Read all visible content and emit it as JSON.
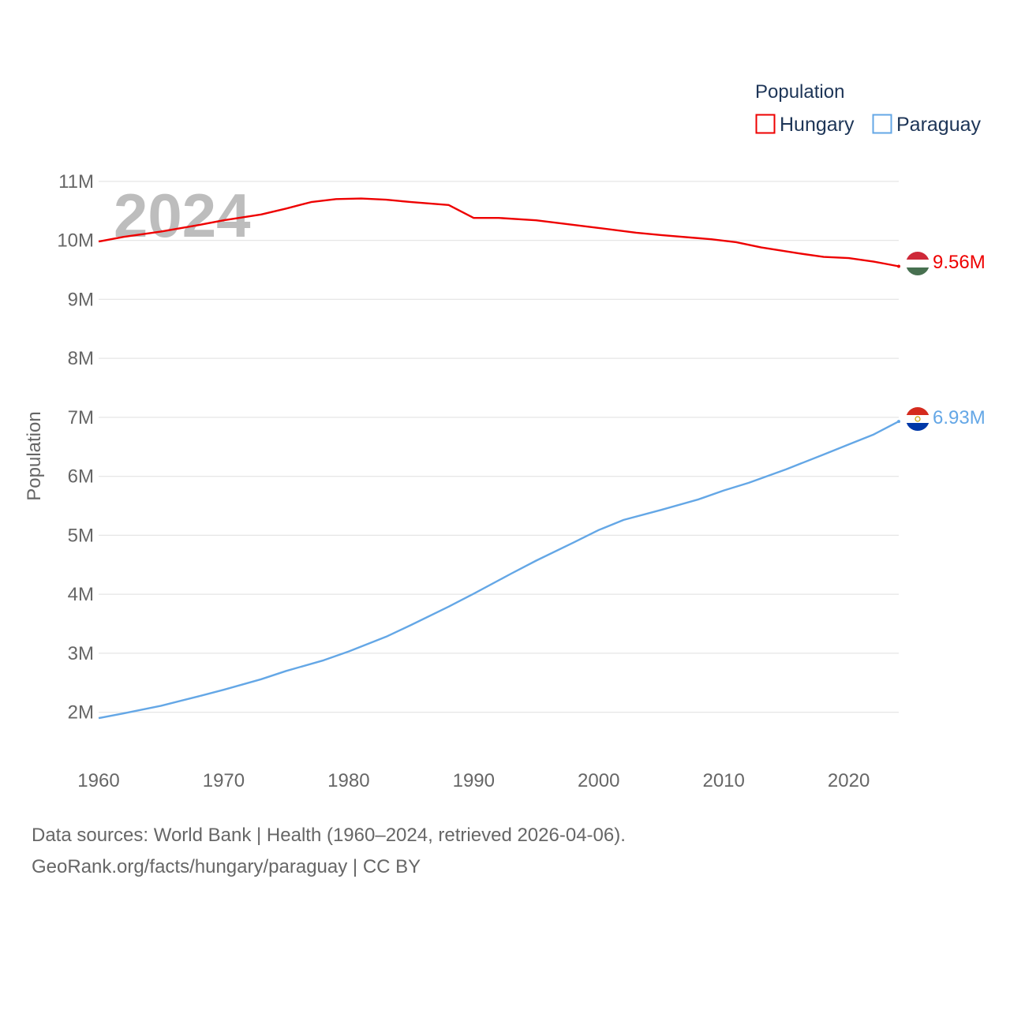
{
  "chart_data": {
    "type": "line",
    "title": "",
    "current_year_label": "2024",
    "ylabel": "Population",
    "xlabel": "",
    "xlim": [
      1960,
      2024
    ],
    "ylim": [
      1500000,
      11400000
    ],
    "x_ticks": [
      {
        "value": 1960,
        "label": "1960"
      },
      {
        "value": 1970,
        "label": "1970"
      },
      {
        "value": 1980,
        "label": "1980"
      },
      {
        "value": 1990,
        "label": "1990"
      },
      {
        "value": 2000,
        "label": "2000"
      },
      {
        "value": 2010,
        "label": "2010"
      },
      {
        "value": 2020,
        "label": "2020"
      }
    ],
    "y_ticks": [
      {
        "value": 2000000,
        "label": "2M"
      },
      {
        "value": 3000000,
        "label": "3M"
      },
      {
        "value": 4000000,
        "label": "4M"
      },
      {
        "value": 5000000,
        "label": "5M"
      },
      {
        "value": 6000000,
        "label": "6M"
      },
      {
        "value": 7000000,
        "label": "7M"
      },
      {
        "value": 8000000,
        "label": "8M"
      },
      {
        "value": 9000000,
        "label": "9M"
      },
      {
        "value": 10000000,
        "label": "10M"
      },
      {
        "value": 11000000,
        "label": "11M"
      }
    ],
    "legend": {
      "title": "Population",
      "placement": "top-right"
    },
    "series": [
      {
        "name": "Hungary",
        "color": "#ee0000",
        "end_label": "9.56M",
        "flag": "hungary",
        "points": [
          [
            1960,
            9980000
          ],
          [
            1962,
            10060000
          ],
          [
            1965,
            10150000
          ],
          [
            1968,
            10260000
          ],
          [
            1970,
            10340000
          ],
          [
            1973,
            10440000
          ],
          [
            1975,
            10540000
          ],
          [
            1977,
            10650000
          ],
          [
            1979,
            10700000
          ],
          [
            1981,
            10710000
          ],
          [
            1983,
            10690000
          ],
          [
            1985,
            10650000
          ],
          [
            1988,
            10600000
          ],
          [
            1990,
            10380000
          ],
          [
            1992,
            10380000
          ],
          [
            1995,
            10340000
          ],
          [
            2000,
            10210000
          ],
          [
            2003,
            10130000
          ],
          [
            2005,
            10090000
          ],
          [
            2009,
            10020000
          ],
          [
            2011,
            9970000
          ],
          [
            2013,
            9880000
          ],
          [
            2016,
            9780000
          ],
          [
            2018,
            9720000
          ],
          [
            2020,
            9700000
          ],
          [
            2022,
            9640000
          ],
          [
            2023,
            9600000
          ],
          [
            2024,
            9560000
          ]
        ]
      },
      {
        "name": "Paraguay",
        "color": "#64a7e6",
        "end_label": "6.93M",
        "flag": "paraguay",
        "points": [
          [
            1960,
            1900000
          ],
          [
            1962,
            1980000
          ],
          [
            1965,
            2110000
          ],
          [
            1968,
            2270000
          ],
          [
            1970,
            2380000
          ],
          [
            1973,
            2560000
          ],
          [
            1975,
            2700000
          ],
          [
            1978,
            2880000
          ],
          [
            1980,
            3030000
          ],
          [
            1983,
            3280000
          ],
          [
            1985,
            3480000
          ],
          [
            1988,
            3790000
          ],
          [
            1990,
            4010000
          ],
          [
            1993,
            4350000
          ],
          [
            1995,
            4570000
          ],
          [
            1998,
            4880000
          ],
          [
            2000,
            5090000
          ],
          [
            2002,
            5260000
          ],
          [
            2005,
            5430000
          ],
          [
            2008,
            5610000
          ],
          [
            2010,
            5760000
          ],
          [
            2012,
            5890000
          ],
          [
            2015,
            6120000
          ],
          [
            2018,
            6370000
          ],
          [
            2020,
            6540000
          ],
          [
            2022,
            6710000
          ],
          [
            2024,
            6930000
          ]
        ]
      }
    ]
  },
  "footer": {
    "sources_line": "Data sources: World Bank | Health (1960–2024, retrieved 2026-04-06).",
    "link_line": "GeoRank.org/facts/hungary/paraguay | CC BY"
  }
}
